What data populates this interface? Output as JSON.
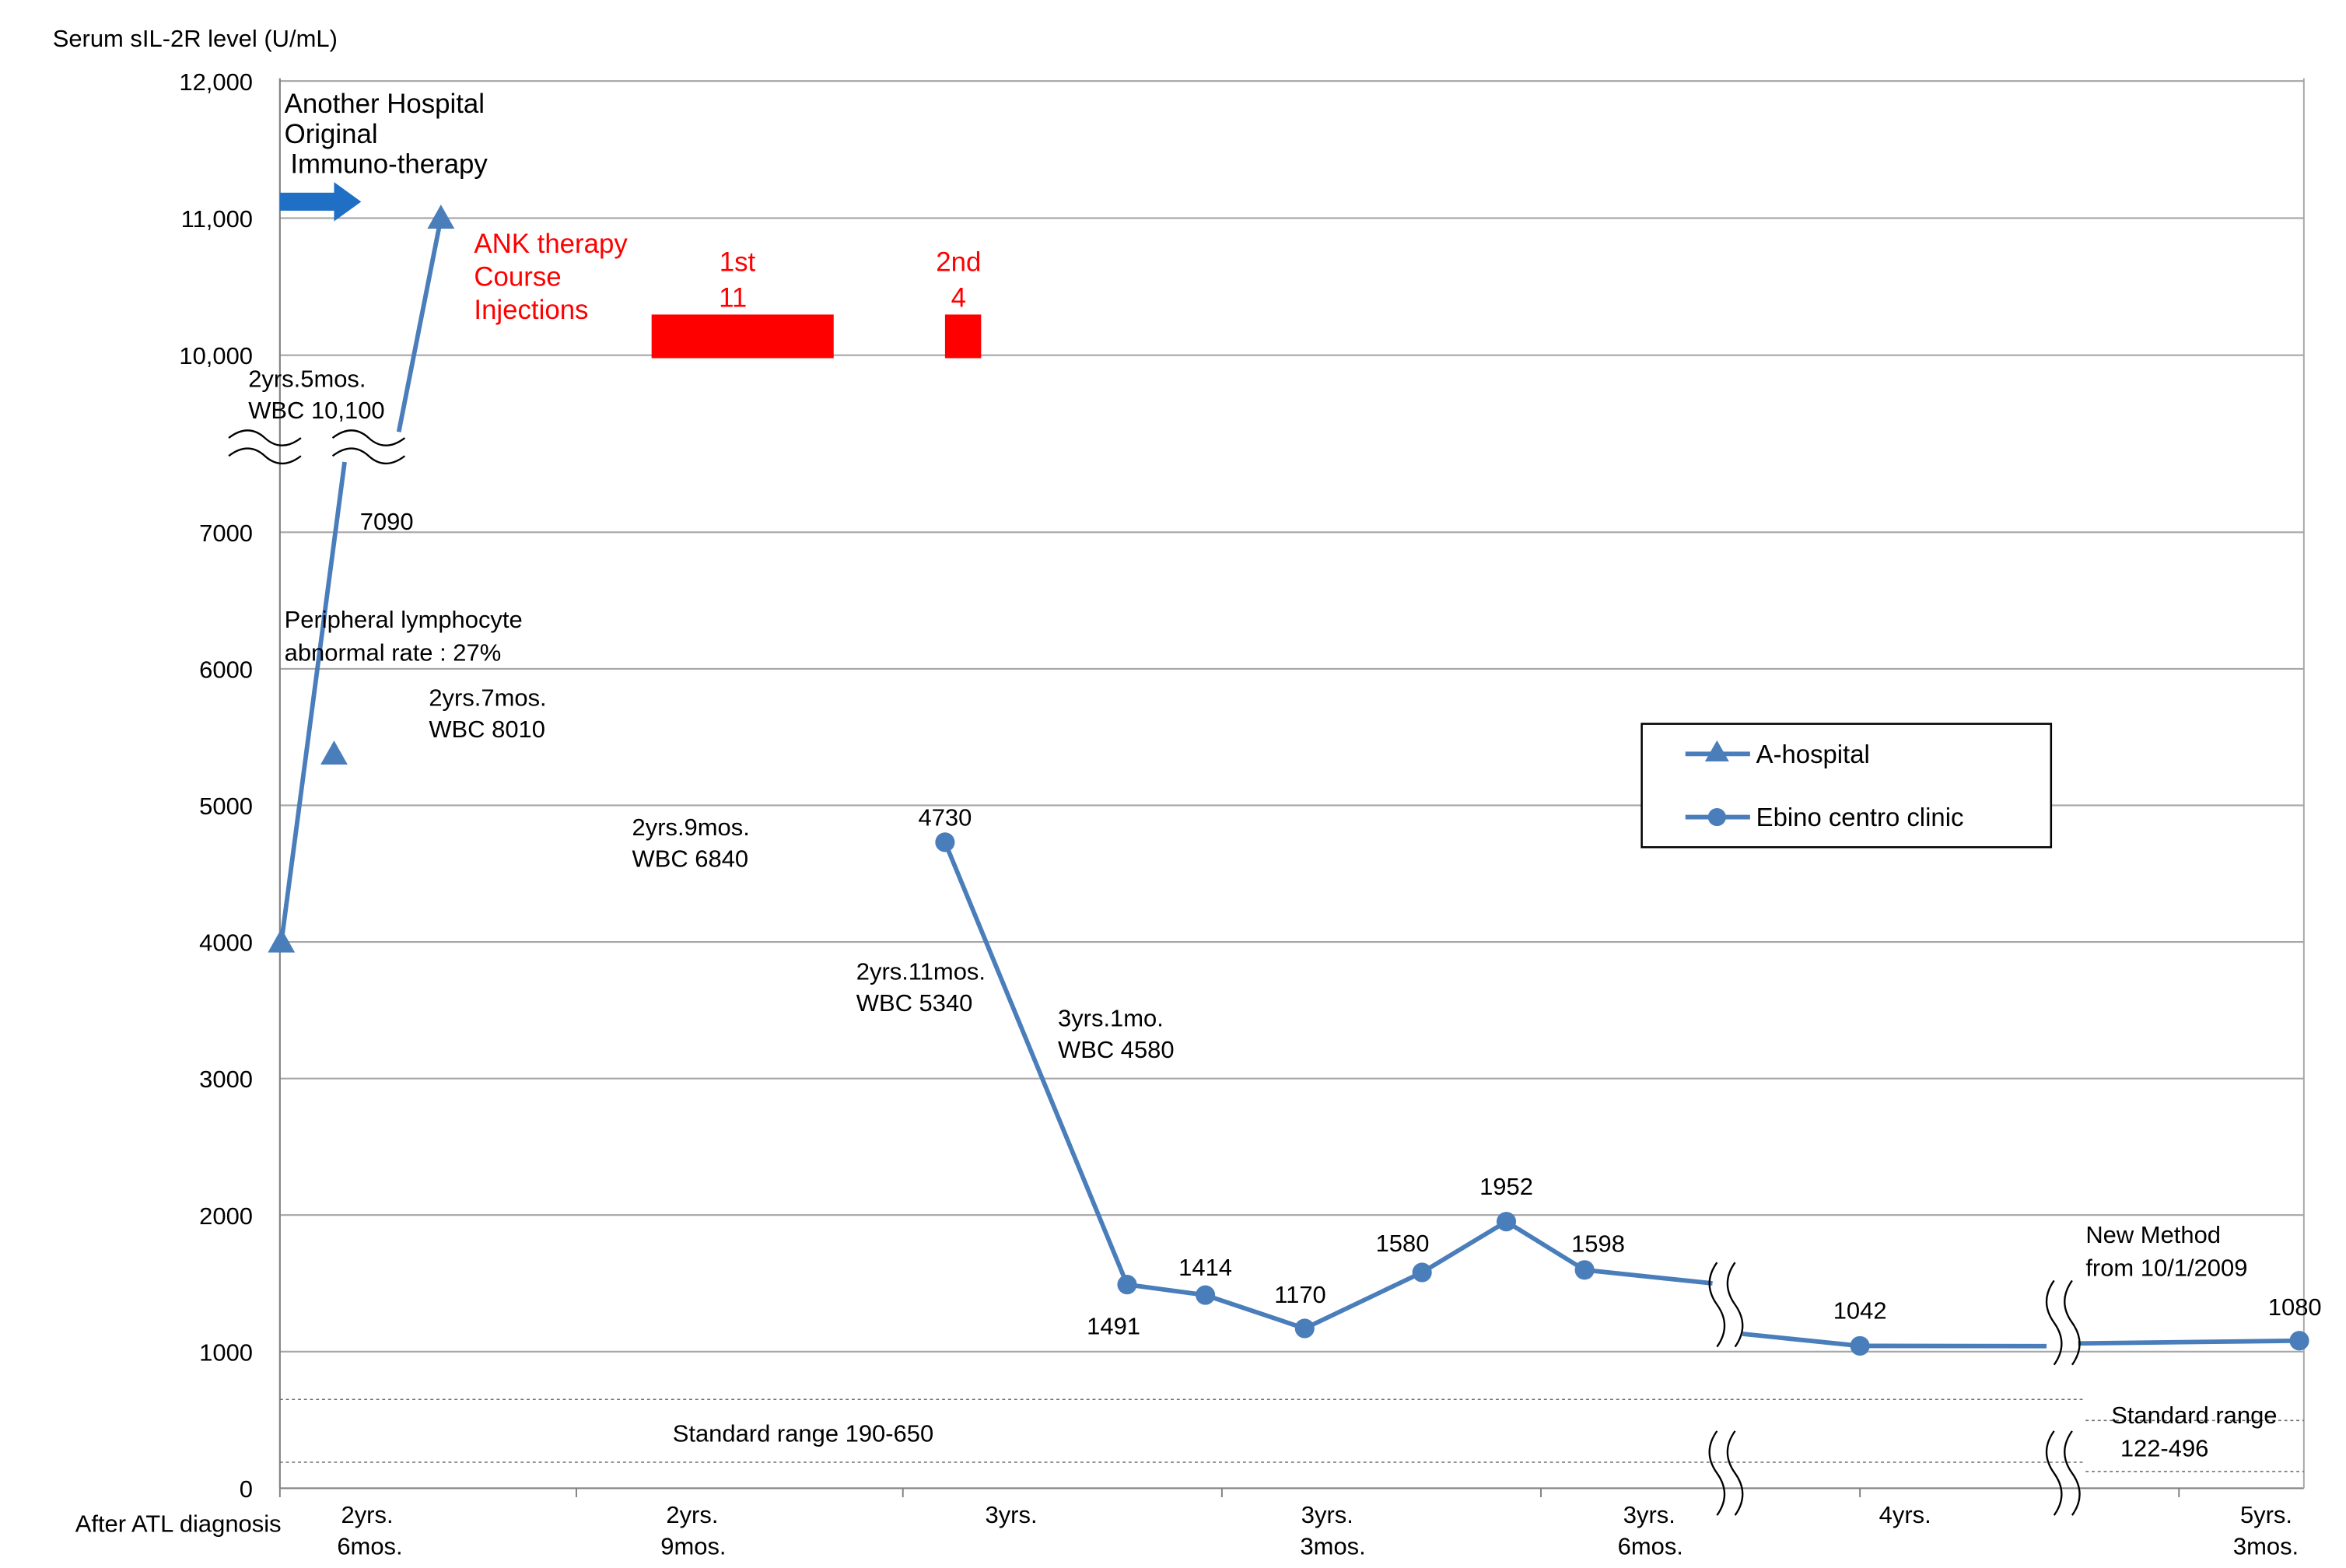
{
  "chart_data": {
    "type": "line",
    "ylabel": "Serum sIL-2R level (U/mL)",
    "xlabel": "After ATL diagnosis",
    "y_ticks": [
      "12,000",
      "11,000",
      "10,000",
      "7000",
      "6000",
      "5000",
      "4000",
      "3000",
      "2000",
      "1000",
      "0"
    ],
    "y_tick_values": [
      12000,
      11000,
      10000,
      7000,
      6000,
      5000,
      4000,
      3000,
      2000,
      1000,
      0
    ],
    "y_break": "between 7000 and 10,000",
    "x_ticks": [
      {
        "line1": "2yrs.",
        "line2": "6mos."
      },
      {
        "line1": "2yrs.",
        "line2": "9mos."
      },
      {
        "line1": "3yrs.",
        "line2": ""
      },
      {
        "line1": "3yrs.",
        "line2": "3mos."
      },
      {
        "line1": "3yrs.",
        "line2": "6mos."
      },
      {
        "line1": "4yrs.",
        "line2": ""
      },
      {
        "line1": "5yrs.",
        "line2": "3mos."
      }
    ],
    "legend": {
      "position": "center-right",
      "items": [
        {
          "name": "A-hospital",
          "marker": "triangle"
        },
        {
          "name": "Ebino centro clinic",
          "marker": "circle"
        }
      ]
    },
    "series": [
      {
        "name": "A-hospital",
        "marker": "triangle",
        "color": "#4a7ebb",
        "points": [
          {
            "value": 4000,
            "label": ""
          },
          {
            "value": 7090,
            "label": "7090"
          },
          {
            "value": 10100,
            "label": ""
          },
          {
            "value": 11000,
            "label": ""
          }
        ]
      },
      {
        "name": "Ebino centro clinic",
        "marker": "circle",
        "color": "#4a7ebb",
        "points": [
          {
            "value": 4730,
            "label": "4730"
          },
          {
            "value": 1491,
            "label": "1491"
          },
          {
            "value": 1414,
            "label": "1414"
          },
          {
            "value": 1170,
            "label": "1170"
          },
          {
            "value": 1580,
            "label": "1580"
          },
          {
            "value": 1952,
            "label": "1952"
          },
          {
            "value": 1598,
            "label": "1598"
          },
          {
            "value": 1500,
            "label": ""
          },
          {
            "value": 1130,
            "label": ""
          },
          {
            "value": 1042,
            "label": "1042"
          },
          {
            "value": 1040,
            "label": ""
          },
          {
            "value": 1060,
            "label": ""
          },
          {
            "value": 1080,
            "label": "1080"
          }
        ]
      }
    ],
    "therapy": {
      "another_hospital": [
        "Another Hospital",
        "Original",
        "Immuno-therapy"
      ],
      "ank_title": [
        "ANK therapy",
        "Course",
        "Injections"
      ],
      "courses": [
        {
          "name": "1st",
          "injections": "11"
        },
        {
          "name": "2nd",
          "injections": "4"
        }
      ]
    },
    "standard_ranges": [
      {
        "text": "Standard range 190-650",
        "low": 190,
        "high": 650
      },
      {
        "line1": "Standard range",
        "line2": "122-496",
        "low": 122,
        "high": 496
      }
    ],
    "annotations": {
      "a1": [
        "2yrs.5mos.",
        "WBC 10,100"
      ],
      "a2": [
        "Peripheral lymphocyte",
        "abnormal rate : 27%"
      ],
      "a3": [
        "2yrs.7mos.",
        "WBC 8010"
      ],
      "a4": [
        "2yrs.9mos.",
        "WBC 6840"
      ],
      "a5": [
        "2yrs.11mos.",
        "WBC 5340"
      ],
      "a6": [
        "3yrs.1mo.",
        "WBC 4580"
      ],
      "a7": [
        "New Method",
        "from 10/1/2009"
      ]
    },
    "colors": {
      "line": "#4a7ebb",
      "ank": "#ff0000",
      "arrow": "#1f6fc5",
      "grid": "#a6a6a6"
    }
  }
}
